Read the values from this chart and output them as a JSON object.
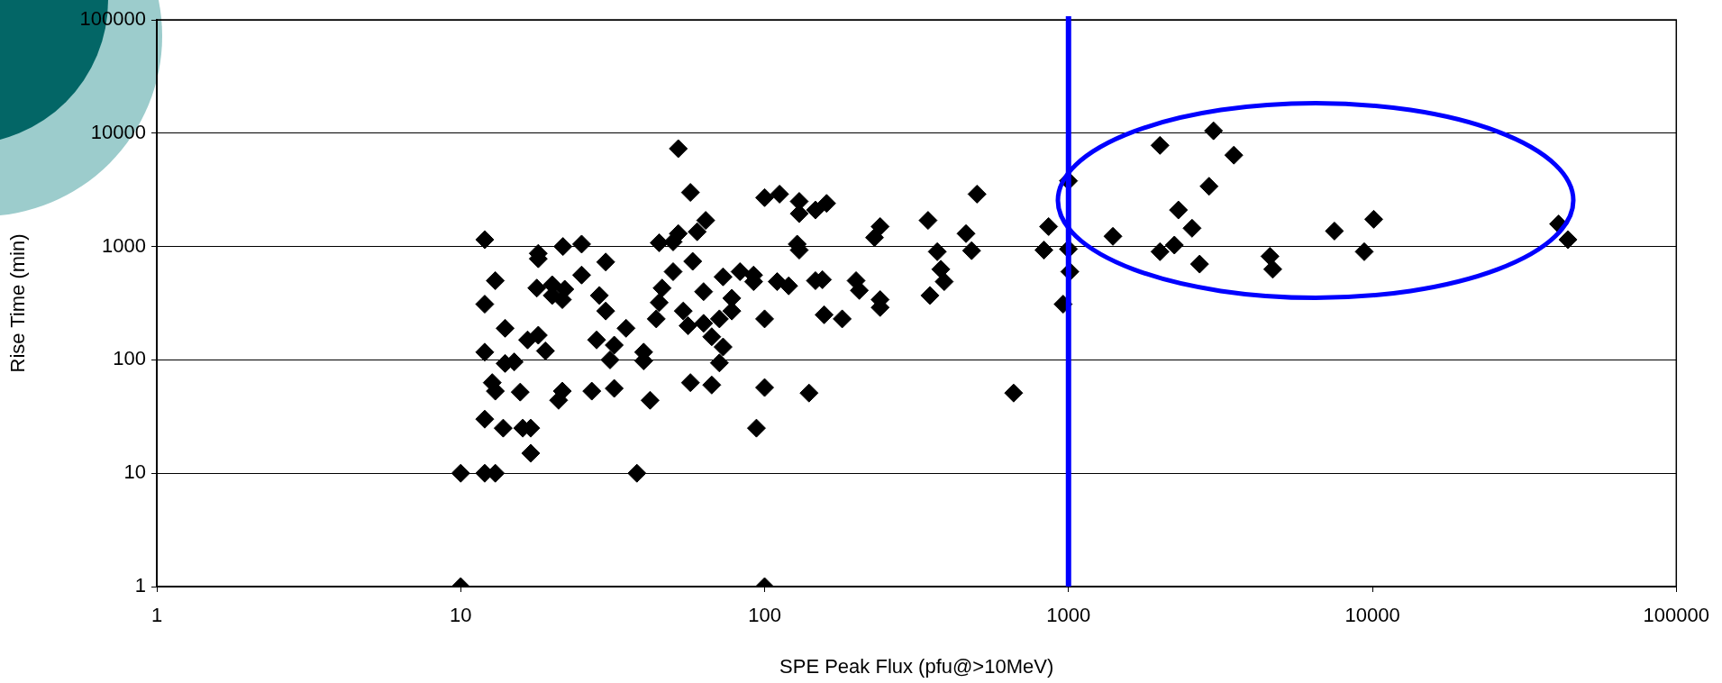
{
  "chart_data": {
    "type": "scatter",
    "xlabel": "SPE Peak Flux (pfu@>10MeV)",
    "ylabel": "Rise Time (min)",
    "log": "xy",
    "grid": "y",
    "legend": false,
    "marker": "diamond",
    "xlim": [
      1,
      100000
    ],
    "ylim": [
      1,
      100000
    ],
    "xticks": [
      1,
      10,
      100,
      1000,
      10000,
      100000
    ],
    "yticks": [
      1,
      10,
      100,
      1000,
      10000,
      100000
    ],
    "ref_lines": [
      {
        "axis": "x",
        "value": 1000,
        "color": "#0000ff"
      }
    ],
    "series": [
      {
        "color": "#000000",
        "x": [
          10,
          100,
          10,
          12,
          13,
          38,
          12,
          12,
          12,
          12,
          13,
          12.7,
          13,
          14,
          14,
          13.8,
          15,
          15.7,
          16,
          17,
          17,
          16.6,
          18,
          18,
          17.8,
          18,
          19,
          20,
          20,
          21.7,
          21.6,
          21,
          21.6,
          22,
          25,
          25,
          27,
          28.6,
          28,
          30,
          30,
          32,
          31,
          32,
          35,
          40,
          40,
          42,
          44,
          46,
          45,
          45,
          50,
          50,
          52,
          52,
          54,
          56,
          57,
          58,
          57,
          60,
          64,
          63,
          63,
          67,
          67,
          71,
          73,
          71,
          73,
          78,
          78,
          83,
          92,
          92,
          94,
          100,
          100,
          100,
          110,
          112,
          120,
          130,
          128,
          130,
          130,
          140,
          147,
          147,
          155,
          160,
          157,
          180,
          200,
          205,
          230,
          240,
          240,
          240,
          345,
          350,
          370,
          380,
          390,
          460,
          480,
          500,
          660,
          830,
          860,
          1000,
          1000,
          1010,
          960,
          1400,
          2000,
          2000,
          3000,
          3500,
          2900,
          2300,
          2550,
          2230,
          2700,
          4600,
          4700,
          7500,
          10100,
          9400,
          41000,
          44000
        ],
        "values": [
          1,
          1,
          10,
          10,
          10,
          10,
          1150,
          310,
          117,
          30,
          500,
          63,
          53,
          190,
          93,
          25,
          96,
          52,
          25,
          25,
          15,
          150,
          870,
          780,
          430,
          165,
          120,
          370,
          460,
          1000,
          53,
          44,
          340,
          420,
          1050,
          560,
          53,
          370,
          150,
          730,
          270,
          135,
          100,
          56,
          190,
          117,
          98,
          44,
          230,
          430,
          320,
          1080,
          1100,
          600,
          7300,
          1300,
          270,
          200,
          3000,
          740,
          63,
          1350,
          1700,
          400,
          210,
          160,
          60,
          94,
          130,
          230,
          540,
          350,
          270,
          600,
          560,
          490,
          25,
          230,
          57,
          2700,
          490,
          2900,
          450,
          930,
          1050,
          2500,
          1950,
          51,
          2100,
          500,
          510,
          2400,
          250,
          230,
          500,
          410,
          1200,
          1500,
          340,
          290,
          1700,
          370,
          900,
          630,
          490,
          1300,
          920,
          2900,
          51,
          930,
          1500,
          3800,
          950,
          600,
          310,
          1230,
          7800,
          900,
          10500,
          6400,
          3400,
          2100,
          1450,
          1030,
          700,
          820,
          630,
          1370,
          1740,
          900,
          1580,
          1150
        ]
      }
    ]
  }
}
